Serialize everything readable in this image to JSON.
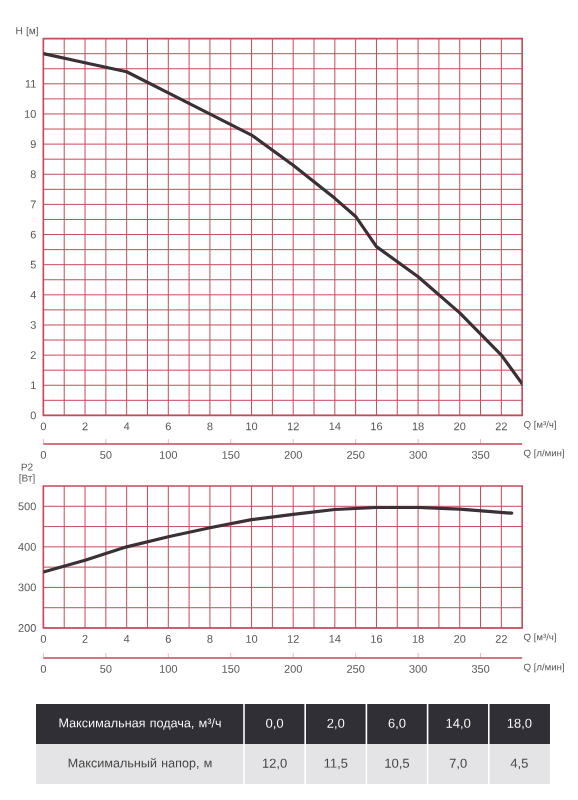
{
  "chart_data": [
    {
      "type": "line",
      "xlabel": "Q [м³/ч]",
      "ylabel": "H [м]",
      "x2label": "Q [л/мин]",
      "x": [
        0,
        2,
        4,
        6,
        8,
        10,
        12,
        14,
        15,
        16,
        18,
        20,
        22,
        23
      ],
      "series": [
        {
          "color": "#3a3035",
          "values": [
            12.0,
            11.7,
            11.4,
            10.7,
            10.0,
            9.3,
            8.3,
            7.2,
            6.6,
            5.6,
            4.6,
            3.4,
            2.0,
            1.05
          ]
        }
      ],
      "xlim": [
        0,
        23
      ],
      "xticks": [
        0,
        2,
        4,
        6,
        8,
        10,
        12,
        14,
        16,
        18,
        20,
        22
      ],
      "ylim": [
        0,
        12.5
      ],
      "yticks": [
        0,
        1,
        2,
        3,
        4,
        5,
        6,
        7,
        8,
        9,
        10,
        11,
        {
          "value": 12,
          "label": null
        }
      ],
      "x2lim": [
        0,
        383.3
      ],
      "x2ticks": [
        0,
        50,
        100,
        150,
        200,
        250,
        300,
        350
      ],
      "grid": true,
      "line_style": "solid",
      "marker": "none"
    },
    {
      "type": "line",
      "xlabel": "Q [м³/ч]",
      "ylabel": "P2 [Вт]",
      "x2label": "Q [л/мин]",
      "x": [
        0,
        2,
        4,
        6,
        8,
        10,
        12,
        14,
        16,
        18,
        20,
        22.5
      ],
      "series": [
        {
          "color": "#3a3035",
          "values": [
            338,
            367,
            400,
            425,
            447,
            467,
            480,
            492,
            497,
            497,
            493,
            483
          ]
        }
      ],
      "xlim": [
        0,
        23
      ],
      "xticks": [
        0,
        2,
        4,
        6,
        8,
        10,
        12,
        14,
        16,
        18,
        20,
        22
      ],
      "ylim": [
        200,
        550
      ],
      "yticks": [
        200,
        300,
        400,
        500
      ],
      "x2lim": [
        0,
        383.3
      ],
      "x2ticks": [
        0,
        50,
        100,
        150,
        200,
        250,
        300,
        350
      ],
      "grid": true,
      "line_style": "solid",
      "marker": "none"
    },
    {
      "type": "other",
      "y_categories": [
        "Максимальная подача, м³/ч",
        "Максимальный напор, м"
      ],
      "cell_labels": [
        [
          "0,0",
          "2,0",
          "6,0",
          "14,0",
          "18,0"
        ],
        [
          "12,0",
          "11,5",
          "10,5",
          "7,0",
          "4,5"
        ]
      ]
    }
  ]
}
